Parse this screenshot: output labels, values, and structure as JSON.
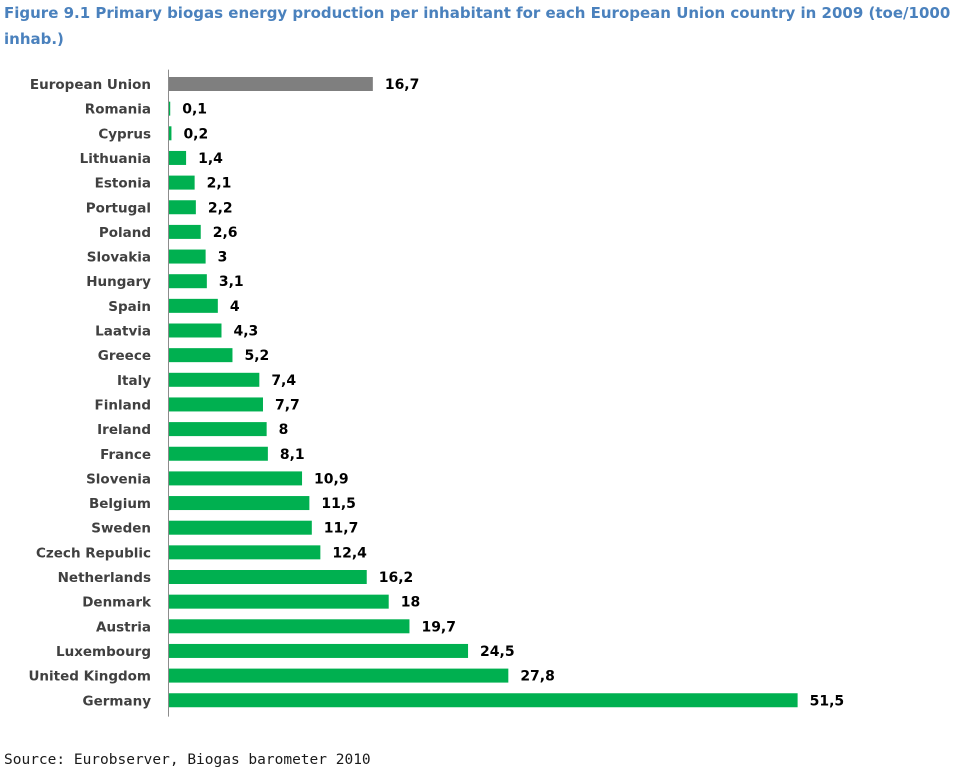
{
  "figure": {
    "title": "Figure 9.1  Primary biogas energy production per inhabitant for each European Union country in 2009 (toe/1000 inhab.)",
    "source": "Source: Eurobserver, Biogas barometer 2010"
  },
  "colors": {
    "title": "#4a81bd",
    "highlight_bar": "#7f7f7f",
    "bar": "#00b050",
    "axis": "#8c8c8c"
  },
  "chart_data": {
    "type": "bar",
    "orientation": "horizontal",
    "title": "Figure 9.1  Primary biogas energy production per inhabitant for each European Union country in 2009 (toe/1000 inhab.)",
    "xlabel": "",
    "ylabel": "",
    "grid": false,
    "legend": "none",
    "xlim": [
      0,
      52
    ],
    "categories": [
      "European Union",
      "Romania",
      "Cyprus",
      "Lithuania",
      "Estonia",
      "Portugal",
      "Poland",
      "Slovakia",
      "Hungary",
      "Spain",
      "Laatvia",
      "Greece",
      "Italy",
      "Finland",
      "Ireland",
      "France",
      "Slovenia",
      "Belgium",
      "Sweden",
      "Czech Republic",
      "Netherlands",
      "Denmark",
      "Austria",
      "Luxembourg",
      "United Kingdom",
      "Germany"
    ],
    "values": [
      16.7,
      0.1,
      0.2,
      1.4,
      2.1,
      2.2,
      2.6,
      3,
      3.1,
      4,
      4.3,
      5.2,
      7.4,
      7.7,
      8,
      8.1,
      10.9,
      11.5,
      11.7,
      12.4,
      16.2,
      18,
      19.7,
      24.5,
      27.8,
      51.5
    ],
    "value_labels": [
      "16,7",
      "0,1",
      "0,2",
      "1,4",
      "2,1",
      "2,2",
      "2,6",
      "3",
      "3,1",
      "4",
      "4,3",
      "5,2",
      "7,4",
      "7,7",
      "8",
      "8,1",
      "10,9",
      "11,5",
      "11,7",
      "12,4",
      "16,2",
      "18",
      "19,7",
      "24,5",
      "27,8",
      "51,5"
    ],
    "highlight_category": "European Union"
  }
}
